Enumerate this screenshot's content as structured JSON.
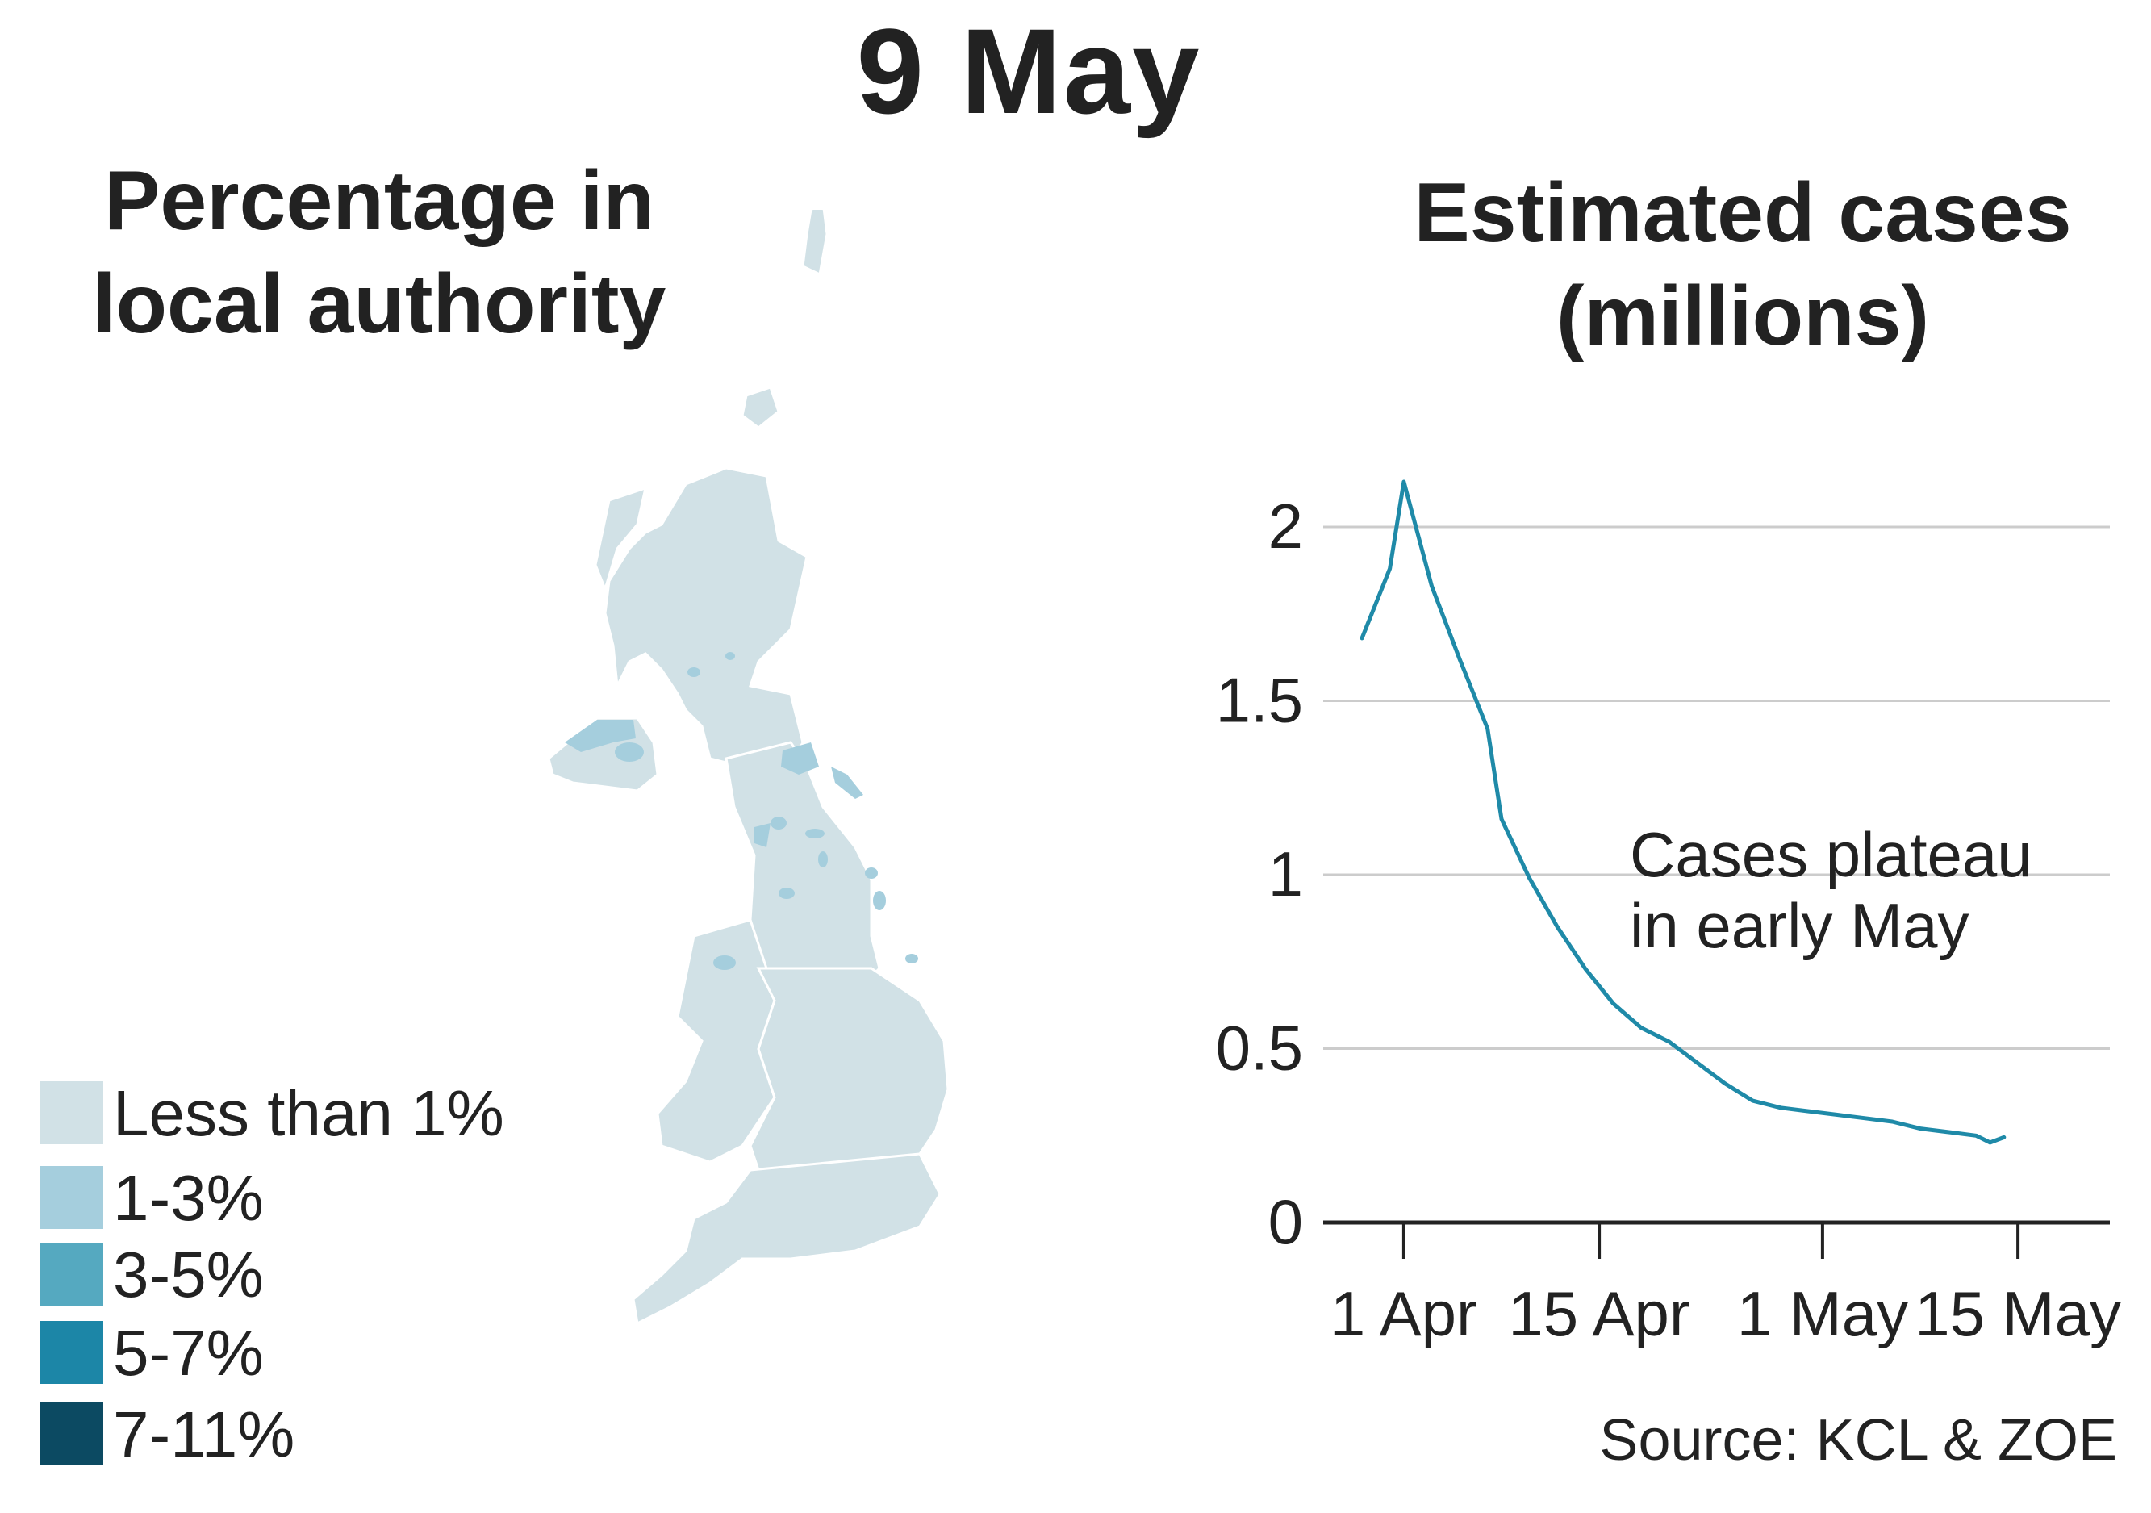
{
  "title": "9 May",
  "map": {
    "title_line1": "Percentage in",
    "title_line2": "local authority",
    "legend": [
      {
        "label": "Less than 1%",
        "color": "#d1e1e6"
      },
      {
        "label": "1-3%",
        "color": "#a5cedd"
      },
      {
        "label": "3-5%",
        "color": "#55a9c0"
      },
      {
        "label": "5-7%",
        "color": "#1c86a7"
      },
      {
        "label": "7-11%",
        "color": "#0c4a62"
      }
    ]
  },
  "chart_data": {
    "type": "line",
    "title": "Estimated cases (millions)",
    "title_line1": "Estimated cases",
    "title_line2": "(millions)",
    "xlabel": "",
    "ylabel": "",
    "x_tick_labels": [
      "1 Apr",
      "15 Apr",
      "1 May",
      "15 May"
    ],
    "y_tick_labels": [
      "0",
      "0.5",
      "1",
      "1.5",
      "2"
    ],
    "ylim": [
      0,
      2.2
    ],
    "grid": true,
    "legend": "none",
    "line_color": "#1f8aa8",
    "series": [
      {
        "x": [
          "2020-03-29",
          "2020-03-31",
          "2020-04-01",
          "2020-04-03",
          "2020-04-05",
          "2020-04-07",
          "2020-04-08",
          "2020-04-10",
          "2020-04-12",
          "2020-04-14",
          "2020-04-16",
          "2020-04-18",
          "2020-04-20",
          "2020-04-22",
          "2020-04-24",
          "2020-04-26",
          "2020-04-28",
          "2020-04-30",
          "2020-05-02",
          "2020-05-04",
          "2020-05-06",
          "2020-05-08",
          "2020-05-10",
          "2020-05-12",
          "2020-05-13",
          "2020-05-14"
        ],
        "values": [
          1.68,
          1.88,
          2.13,
          1.83,
          1.62,
          1.42,
          1.16,
          0.99,
          0.85,
          0.73,
          0.63,
          0.56,
          0.52,
          0.46,
          0.4,
          0.35,
          0.33,
          0.32,
          0.31,
          0.3,
          0.29,
          0.27,
          0.26,
          0.25,
          0.23,
          0.245
        ]
      }
    ],
    "annotation_line1": "Cases plateau",
    "annotation_line2": "in early May"
  },
  "source": "Source: KCL & ZOE"
}
